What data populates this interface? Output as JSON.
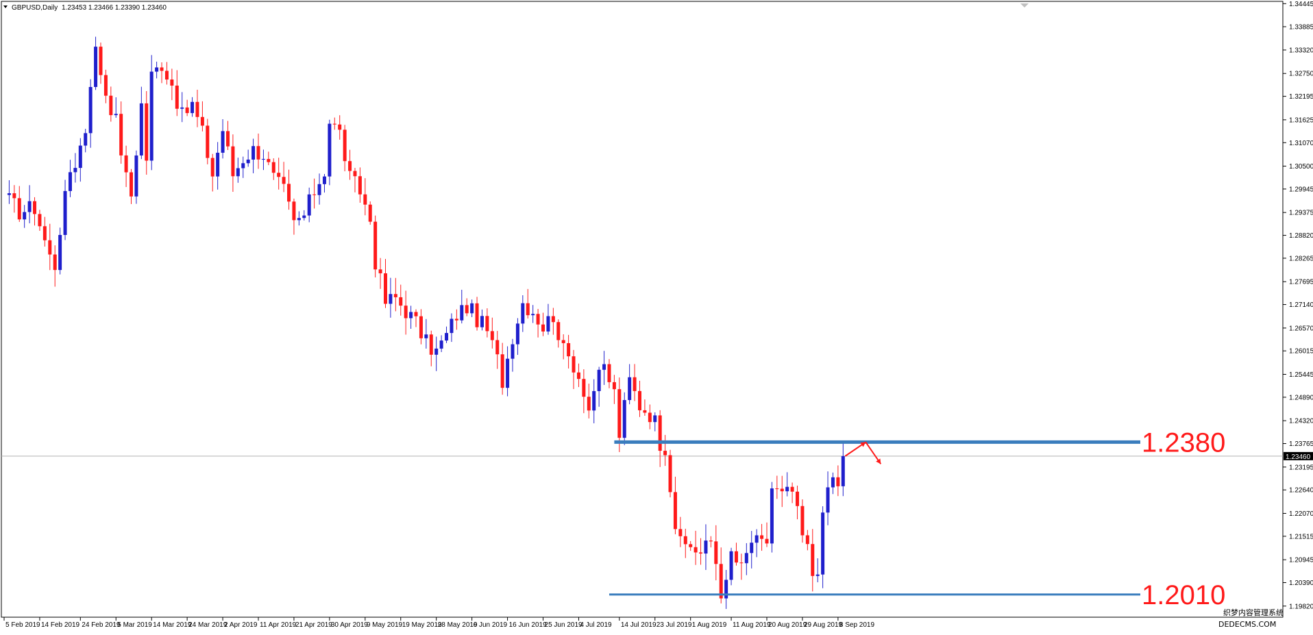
{
  "header": {
    "symbol": "GBPUSD,Daily",
    "ohlc": "1.23453 1.23466 1.23390 1.23460"
  },
  "current_price_label": "1.23460",
  "watermark": {
    "line1": "织梦内容管理系统",
    "line2": "DEDECMS.COM"
  },
  "colors": {
    "bull": "#1f1fcc",
    "bear": "#ff1a1a",
    "level": "#3a7dbd",
    "text": "#000000",
    "arrow": "#ff1a1a"
  },
  "chart_data": {
    "type": "candlestick",
    "title": "GBPUSD,Daily",
    "ylim": [
      1.1955,
      1.345
    ],
    "y_ticks": [
      "1.34445",
      "1.33885",
      "1.33320",
      "1.32750",
      "1.32195",
      "1.31625",
      "1.31070",
      "1.30500",
      "1.29945",
      "1.29375",
      "1.28820",
      "1.28265",
      "1.27695",
      "1.27140",
      "1.26570",
      "1.26015",
      "1.25445",
      "1.24890",
      "1.24320",
      "1.23765",
      "1.23195",
      "1.22640",
      "1.22070",
      "1.21515",
      "1.20945",
      "1.20390",
      "1.19820"
    ],
    "x_labels": [
      {
        "label": "5 Feb 2019",
        "index": 0
      },
      {
        "label": "14 Feb 2019",
        "index": 7
      },
      {
        "label": "24 Feb 2019",
        "index": 15
      },
      {
        "label": "5 Mar 2019",
        "index": 22
      },
      {
        "label": "14 Mar 2019",
        "index": 29
      },
      {
        "label": "24 Mar 2019",
        "index": 36
      },
      {
        "label": "2 Apr 2019",
        "index": 43
      },
      {
        "label": "11 Apr 2019",
        "index": 50
      },
      {
        "label": "21 Apr 2019",
        "index": 57
      },
      {
        "label": "30 Apr 2019",
        "index": 64
      },
      {
        "label": "9 May 2019",
        "index": 71
      },
      {
        "label": "19 May 2019",
        "index": 78
      },
      {
        "label": "28 May 2019",
        "index": 85
      },
      {
        "label": "6 Jun 2019",
        "index": 92
      },
      {
        "label": "16 Jun 2019",
        "index": 99
      },
      {
        "label": "25 Jun 2019",
        "index": 106
      },
      {
        "label": "4 Jul 2019",
        "index": 113
      },
      {
        "label": "14 Jul 2019",
        "index": 121
      },
      {
        "label": "23 Jul 2019",
        "index": 128
      },
      {
        "label": "1 Aug 2019",
        "index": 135
      },
      {
        "label": "11 Aug 2019",
        "index": 143
      },
      {
        "label": "20 Aug 2019",
        "index": 150
      },
      {
        "label": "29 Aug 2019",
        "index": 157
      },
      {
        "label": "8 Sep 2019",
        "index": 164
      }
    ],
    "anchors": [
      [
        0,
        1.298
      ],
      [
        3,
        1.294
      ],
      [
        6,
        1.295
      ],
      [
        9,
        1.283
      ],
      [
        10,
        1.281
      ],
      [
        11,
        1.29
      ],
      [
        13,
        1.304
      ],
      [
        14,
        1.306
      ],
      [
        16,
        1.314
      ],
      [
        17,
        1.326
      ],
      [
        18,
        1.333
      ],
      [
        20,
        1.323
      ],
      [
        22,
        1.316
      ],
      [
        24,
        1.302
      ],
      [
        25,
        1.298
      ],
      [
        27,
        1.32
      ],
      [
        28,
        1.307
      ],
      [
        29,
        1.327
      ],
      [
        31,
        1.33
      ],
      [
        33,
        1.325
      ],
      [
        35,
        1.317
      ],
      [
        37,
        1.32
      ],
      [
        39,
        1.313
      ],
      [
        41,
        1.303
      ],
      [
        43,
        1.314
      ],
      [
        45,
        1.303
      ],
      [
        47,
        1.307
      ],
      [
        49,
        1.309
      ],
      [
        51,
        1.308
      ],
      [
        53,
        1.302
      ],
      [
        55,
        1.299
      ],
      [
        57,
        1.291
      ],
      [
        59,
        1.293
      ],
      [
        61,
        1.299
      ],
      [
        63,
        1.304
      ],
      [
        64,
        1.316
      ],
      [
        66,
        1.313
      ],
      [
        68,
        1.302
      ],
      [
        70,
        1.299
      ],
      [
        72,
        1.292
      ],
      [
        73,
        1.282
      ],
      [
        75,
        1.272
      ],
      [
        77,
        1.273
      ],
      [
        79,
        1.27
      ],
      [
        81,
        1.267
      ],
      [
        83,
        1.262
      ],
      [
        85,
        1.26
      ],
      [
        87,
        1.264
      ],
      [
        89,
        1.269
      ],
      [
        91,
        1.271
      ],
      [
        93,
        1.268
      ],
      [
        95,
        1.265
      ],
      [
        97,
        1.258
      ],
      [
        98,
        1.253
      ],
      [
        100,
        1.264
      ],
      [
        102,
        1.272
      ],
      [
        104,
        1.27
      ],
      [
        106,
        1.266
      ],
      [
        108,
        1.269
      ],
      [
        110,
        1.26
      ],
      [
        112,
        1.257
      ],
      [
        114,
        1.251
      ],
      [
        115,
        1.246
      ],
      [
        116,
        1.251
      ],
      [
        118,
        1.256
      ],
      [
        120,
        1.25
      ],
      [
        121,
        1.24
      ],
      [
        123,
        1.253
      ],
      [
        125,
        1.247
      ],
      [
        127,
        1.245
      ],
      [
        128,
        1.243
      ],
      [
        129,
        1.238
      ],
      [
        130,
        1.237
      ],
      [
        132,
        1.218
      ],
      [
        133,
        1.213
      ],
      [
        135,
        1.213
      ],
      [
        137,
        1.211
      ],
      [
        139,
        1.214
      ],
      [
        140,
        1.209
      ],
      [
        141,
        1.202
      ],
      [
        142,
        1.203
      ],
      [
        143,
        1.211
      ],
      [
        145,
        1.207
      ],
      [
        147,
        1.214
      ],
      [
        149,
        1.213
      ],
      [
        150,
        1.214
      ],
      [
        151,
        1.227
      ],
      [
        153,
        1.225
      ],
      [
        155,
        1.226
      ],
      [
        157,
        1.215
      ],
      [
        158,
        1.212
      ],
      [
        159,
        1.206
      ],
      [
        160,
        1.208
      ],
      [
        161,
        1.219
      ],
      [
        162,
        1.227
      ],
      [
        163,
        1.229
      ],
      [
        164,
        1.228
      ],
      [
        165,
        1.2346
      ]
    ],
    "levels": [
      {
        "label": "1.2380",
        "value": 1.238
      },
      {
        "label": "1.2010",
        "value": 1.201
      }
    ],
    "current_price": 1.2346,
    "last_index": 165
  }
}
